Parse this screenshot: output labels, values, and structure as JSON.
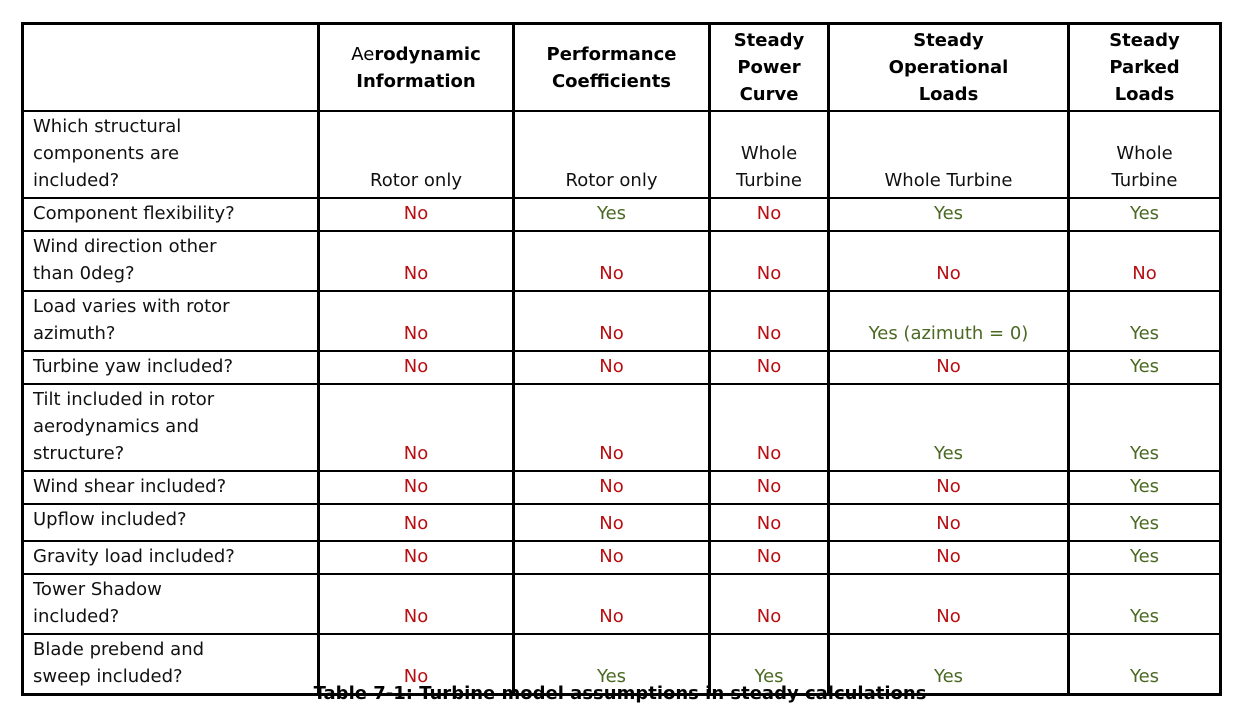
{
  "caption": "Table 7-1: Turbine model assumptions in steady calculations",
  "colors": {
    "yes_green": "#4b6923",
    "no_red": "#b80e12",
    "border_black": "#000000"
  },
  "table": {
    "columns": [
      {
        "label": ""
      },
      {
        "label": "Aerodynamic\nInformation",
        "light_prefix": "Ae"
      },
      {
        "label": "Performance\nCoefficients"
      },
      {
        "label": "Steady\nPower\nCurve"
      },
      {
        "label": "Steady\nOperational\nLoads"
      },
      {
        "label": "Steady\nParked\nLoads"
      }
    ],
    "rows": [
      {
        "label": "Which structural\ncomponents are\nincluded?",
        "values": [
          "Rotor only",
          "Rotor only",
          "Whole\nTurbine",
          "Whole Turbine",
          "Whole\nTurbine"
        ]
      },
      {
        "label": "Component flexibility?",
        "values": [
          "No",
          "Yes",
          "No",
          "Yes",
          "Yes"
        ]
      },
      {
        "label": "Wind direction other\nthan 0deg?",
        "values": [
          "No",
          "No",
          "No",
          "No",
          "No"
        ]
      },
      {
        "label": "Load varies with rotor\nazimuth?",
        "values": [
          "No",
          "No",
          "No",
          "Yes (azimuth = 0)",
          "Yes"
        ]
      },
      {
        "label": "Turbine yaw included?",
        "values": [
          "No",
          "No",
          "No",
          "No",
          "Yes"
        ]
      },
      {
        "label": "Tilt included in rotor\naerodynamics and\nstructure?",
        "values": [
          "No",
          "No",
          "No",
          "Yes",
          "Yes"
        ]
      },
      {
        "label": "Wind shear included?",
        "values": [
          "No",
          "No",
          "No",
          "No",
          "Yes"
        ]
      },
      {
        "label": "Upflow included?",
        "values": [
          "No",
          "No",
          "No",
          "No",
          "Yes"
        ]
      },
      {
        "label": "Gravity load included?",
        "values": [
          "No",
          "No",
          "No",
          "No",
          "Yes"
        ]
      },
      {
        "label": "Tower Shadow\nincluded?",
        "values": [
          "No",
          "No",
          "No",
          "No",
          "Yes"
        ]
      },
      {
        "label": "Blade prebend and\nsweep included?",
        "values": [
          "No",
          "Yes",
          "Yes",
          "Yes",
          "Yes"
        ]
      }
    ]
  }
}
